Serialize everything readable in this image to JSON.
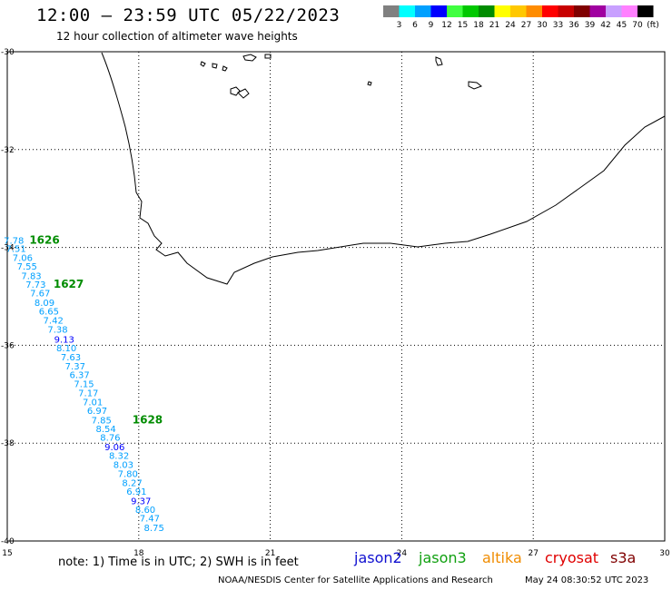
{
  "header": {
    "title": "12:00 – 23:59 UTC 05/22/2023",
    "subtitle": "12 hour collection of altimeter wave heights"
  },
  "legend": {
    "unit_label": "(ft)",
    "bins": [
      {
        "label": "3",
        "color": "#808080"
      },
      {
        "label": "6",
        "color": "#00ffff"
      },
      {
        "label": "9",
        "color": "#00a0ff"
      },
      {
        "label": "12",
        "color": "#0000ff"
      },
      {
        "label": "15",
        "color": "#40ff40"
      },
      {
        "label": "18",
        "color": "#00c800"
      },
      {
        "label": "21",
        "color": "#008c00"
      },
      {
        "label": "24",
        "color": "#ffff00"
      },
      {
        "label": "27",
        "color": "#ffc800"
      },
      {
        "label": "30",
        "color": "#ff8c00"
      },
      {
        "label": "33",
        "color": "#ff0000"
      },
      {
        "label": "36",
        "color": "#c80000"
      },
      {
        "label": "39",
        "color": "#800000"
      },
      {
        "label": "42",
        "color": "#a000a0"
      },
      {
        "label": "45",
        "color": "#c8a0ff"
      },
      {
        "label": "70",
        "color": "#ff80ff"
      },
      {
        "label": "",
        "color": "#000000"
      }
    ]
  },
  "map": {
    "lon_range": [
      15,
      30
    ],
    "lat_range": [
      -40,
      -30
    ],
    "lon_ticks": [
      "15",
      "18",
      "21",
      "24",
      "27",
      "30"
    ],
    "lat_ticks": [
      "-30",
      "-32",
      "-34",
      "-36",
      "-38",
      "-40"
    ],
    "grid": true
  },
  "observations": [
    {
      "lon": 15.15,
      "lat": -33.85,
      "value": "7.78",
      "color": "#00a0ff"
    },
    {
      "lon": 15.2,
      "lat": -34.02,
      "value": "7.51",
      "color": "#00a0ff"
    },
    {
      "lon": 15.35,
      "lat": -34.2,
      "value": "7.06",
      "color": "#00a0ff"
    },
    {
      "lon": 15.45,
      "lat": -34.38,
      "value": "7.55",
      "color": "#00a0ff"
    },
    {
      "lon": 15.55,
      "lat": -34.57,
      "value": "7.83",
      "color": "#00a0ff"
    },
    {
      "lon": 15.65,
      "lat": -34.75,
      "value": "7.73",
      "color": "#00a0ff"
    },
    {
      "lon": 15.75,
      "lat": -34.93,
      "value": "7.67",
      "color": "#00a0ff"
    },
    {
      "lon": 15.85,
      "lat": -35.12,
      "value": "8.09",
      "color": "#00a0ff"
    },
    {
      "lon": 15.95,
      "lat": -35.3,
      "value": "6.65",
      "color": "#00a0ff"
    },
    {
      "lon": 16.05,
      "lat": -35.48,
      "value": "7.42",
      "color": "#00a0ff"
    },
    {
      "lon": 16.15,
      "lat": -35.67,
      "value": "7.38",
      "color": "#00a0ff"
    },
    {
      "lon": 16.3,
      "lat": -35.87,
      "value": "9.13",
      "color": "#0000ff"
    },
    {
      "lon": 16.35,
      "lat": -36.05,
      "value": "8.10",
      "color": "#00a0ff"
    },
    {
      "lon": 16.45,
      "lat": -36.23,
      "value": "7.63",
      "color": "#00a0ff"
    },
    {
      "lon": 16.55,
      "lat": -36.42,
      "value": "7.37",
      "color": "#00a0ff"
    },
    {
      "lon": 16.65,
      "lat": -36.6,
      "value": "6.37",
      "color": "#00a0ff"
    },
    {
      "lon": 16.75,
      "lat": -36.78,
      "value": "7.15",
      "color": "#00a0ff"
    },
    {
      "lon": 16.85,
      "lat": -36.97,
      "value": "7.17",
      "color": "#00a0ff"
    },
    {
      "lon": 16.95,
      "lat": -37.15,
      "value": "7.01",
      "color": "#00a0ff"
    },
    {
      "lon": 17.05,
      "lat": -37.33,
      "value": "6.97",
      "color": "#00a0ff"
    },
    {
      "lon": 17.15,
      "lat": -37.52,
      "value": "7.85",
      "color": "#00a0ff"
    },
    {
      "lon": 17.25,
      "lat": -37.7,
      "value": "8.54",
      "color": "#00a0ff"
    },
    {
      "lon": 17.35,
      "lat": -37.88,
      "value": "8.76",
      "color": "#00a0ff"
    },
    {
      "lon": 17.45,
      "lat": -38.07,
      "value": "9.06",
      "color": "#0000ff"
    },
    {
      "lon": 17.55,
      "lat": -38.25,
      "value": "8.32",
      "color": "#00a0ff"
    },
    {
      "lon": 17.65,
      "lat": -38.43,
      "value": "8.03",
      "color": "#00a0ff"
    },
    {
      "lon": 17.75,
      "lat": -38.62,
      "value": "7.80",
      "color": "#00a0ff"
    },
    {
      "lon": 17.85,
      "lat": -38.8,
      "value": "8.27",
      "color": "#00a0ff"
    },
    {
      "lon": 17.95,
      "lat": -38.98,
      "value": "6.91",
      "color": "#00a0ff"
    },
    {
      "lon": 18.05,
      "lat": -39.17,
      "value": "9.37",
      "color": "#0000ff"
    },
    {
      "lon": 18.15,
      "lat": -39.35,
      "value": "8.60",
      "color": "#00a0ff"
    },
    {
      "lon": 18.25,
      "lat": -39.53,
      "value": "7.47",
      "color": "#00a0ff"
    },
    {
      "lon": 18.35,
      "lat": -39.72,
      "value": "8.75",
      "color": "#00a0ff"
    }
  ],
  "time_labels": [
    {
      "lon": 15.85,
      "lat": -33.85,
      "value": "1626",
      "color": "#008c00"
    },
    {
      "lon": 16.4,
      "lat": -34.75,
      "value": "1627",
      "color": "#008c00"
    },
    {
      "lon": 18.2,
      "lat": -37.52,
      "value": "1628",
      "color": "#008c00"
    }
  ],
  "footer": {
    "note": "note: 1) Time is in UTC; 2) SWH is in feet",
    "satellites": [
      "jason2",
      "jason3",
      "altika",
      "cryosat",
      "s3a"
    ],
    "credit": "NOAA/NESDIS Center for Satellite Applications and Research",
    "timestamp": "May 24 08:30:52 UTC 2023"
  }
}
